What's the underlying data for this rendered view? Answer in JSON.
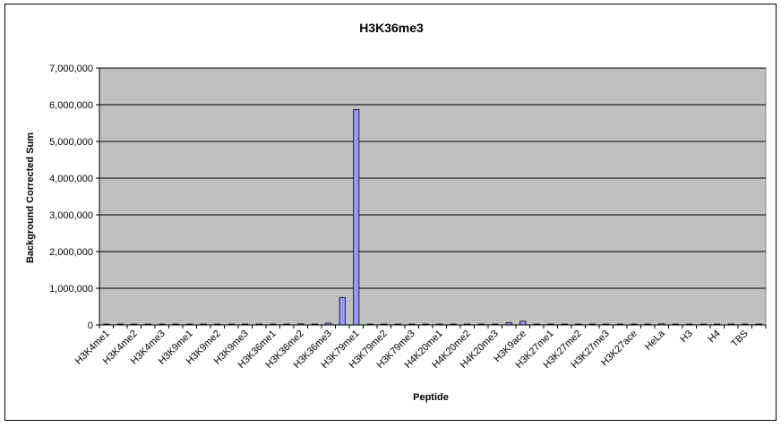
{
  "chart_data": {
    "type": "bar",
    "title": "H3K36me3",
    "xlabel": "Peptide",
    "ylabel": "Background Corrected Sum",
    "ylim": [
      0,
      7000000
    ],
    "yticks": [
      0,
      1000000,
      2000000,
      3000000,
      4000000,
      5000000,
      6000000,
      7000000
    ],
    "ytick_labels": [
      "0",
      "1,000,000",
      "2,000,000",
      "3,000,000",
      "4,000,000",
      "5,000,000",
      "6,000,000",
      "7,000,000"
    ],
    "categories": [
      "H3K4me1",
      "",
      "H3K4me2",
      "",
      "H3K4me3",
      "",
      "H3K9me1",
      "",
      "H3K9me2",
      "",
      "H3K9me3",
      "",
      "H3K36me1",
      "",
      "H3K36me2",
      "",
      "H3K36me3",
      "",
      "H3K79me1",
      "",
      "H3K79me2",
      "",
      "H3K79me3",
      "",
      "H4K20me1",
      "",
      "H4K20me2",
      "",
      "H4K20me3",
      "",
      "H3K9ace",
      "",
      "H3K27me1",
      "",
      "H3K27me2",
      "",
      "H3K27me3",
      "",
      "H3K27ace",
      "",
      "HeLa",
      "",
      "H3",
      "",
      "H4",
      "",
      "TBS",
      ""
    ],
    "values": [
      5000,
      8000,
      6000,
      5000,
      7000,
      9000,
      4000,
      6000,
      5000,
      8000,
      6000,
      5000,
      7000,
      5000,
      30000,
      25000,
      50000,
      750000,
      5870000,
      8000,
      6000,
      5000,
      20000,
      10000,
      25000,
      8000,
      6000,
      5000,
      5000,
      60000,
      100000,
      10000,
      8000,
      6000,
      5000,
      8000,
      20000,
      25000,
      25000,
      10000,
      30000,
      10000,
      8000,
      6000,
      5000,
      8000,
      6000,
      5000
    ],
    "bar_color": "#9999ff",
    "plot_background": "#c0c0c0",
    "grid": true,
    "legend": "none"
  }
}
